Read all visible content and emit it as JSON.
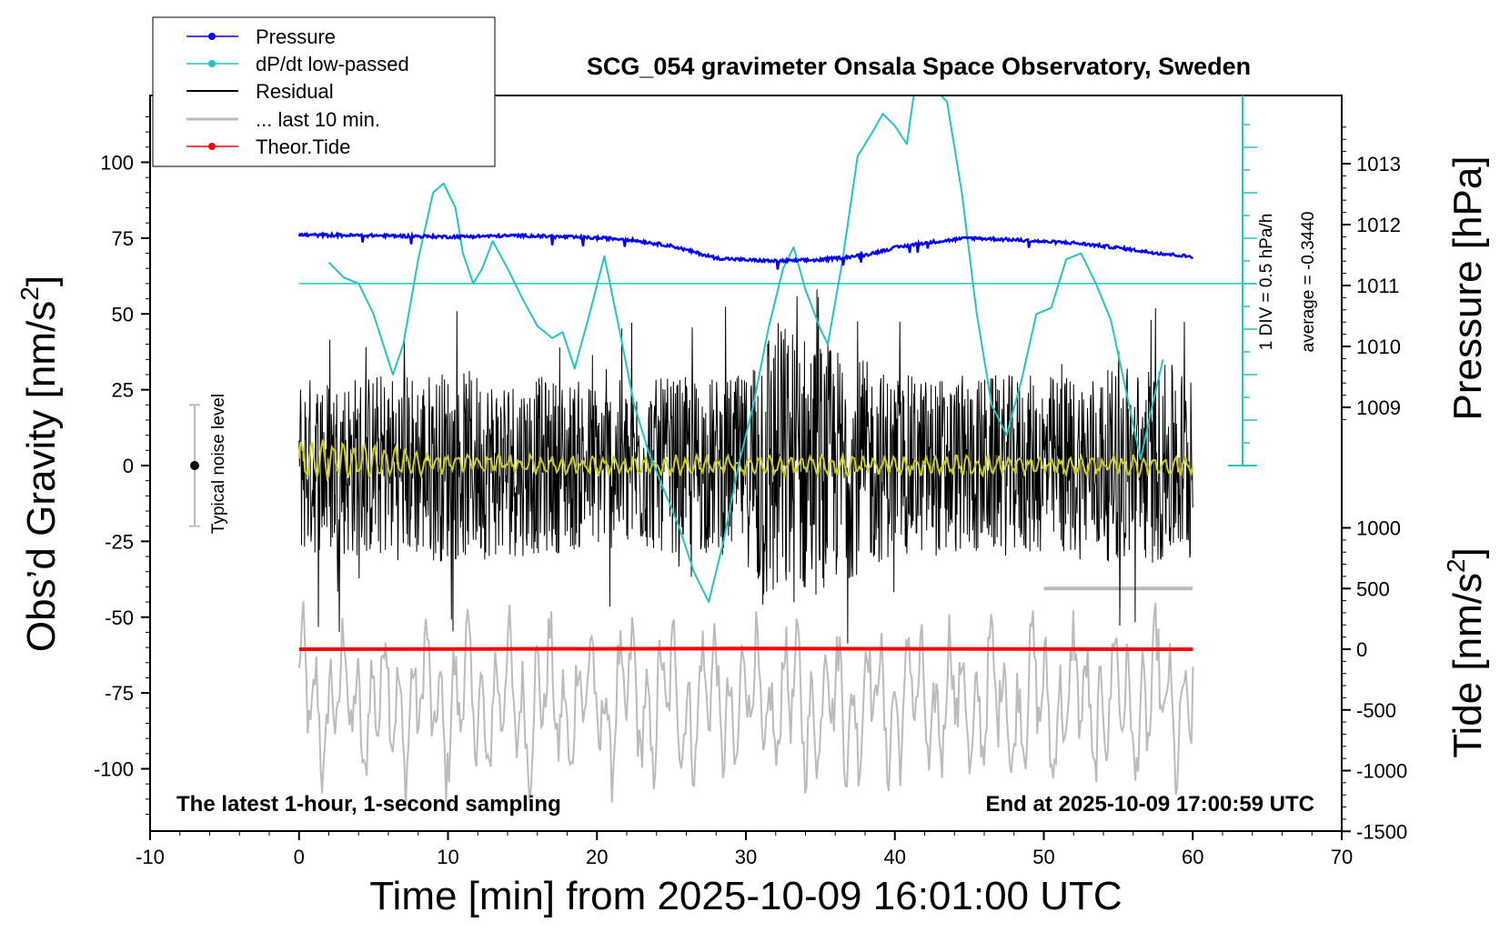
{
  "chart_data": {
    "type": "line",
    "title": "SCG_054 gravimeter Onsala Space Observatory, Sweden",
    "xlabel": "Time [min] from 2025-10-09 16:01:00 UTC",
    "xlim": [
      -10,
      70
    ],
    "x_ticks": [
      "-10",
      "0",
      "10",
      "20",
      "30",
      "40",
      "50",
      "60",
      "70"
    ],
    "left_axis": {
      "label": "Obs’d Gravity [nm/s",
      "label_sup": "2",
      "label_end": "]",
      "ylim": [
        -120,
        120
      ],
      "ticks": [
        "100",
        "75",
        "50",
        "25",
        "0",
        "-25",
        "-50",
        "-75",
        "-100"
      ]
    },
    "pressure_axis": {
      "label": "Pressure [hPa]",
      "ticks": [
        "1013",
        "1012",
        "1011",
        "1010",
        "1009"
      ]
    },
    "tide_axis": {
      "label": "Tide [nm/s",
      "label_sup": "2",
      "label_end": "]",
      "ticks": [
        "1000",
        "500",
        "0",
        "-500",
        "-1000",
        "-1500"
      ]
    },
    "dpdt_scale": {
      "div_note": "1 DIV = 0.5 hPa/h",
      "average_note": "average = -0.3440"
    },
    "noise_indicator": {
      "label": "Typical noise level",
      "range": [
        -20,
        20
      ]
    },
    "footer_left": "The latest 1-hour, 1-second sampling",
    "footer_right": "End at 2025-10-09 17:00:59 UTC",
    "legend": {
      "placement": "top-left",
      "items": [
        {
          "name": "Pressure",
          "color": "#0000ff",
          "marker": true
        },
        {
          "name": "dP/dt low-passed",
          "color": "#22c4c4",
          "marker": true
        },
        {
          "name": "Residual",
          "color": "#000000",
          "marker": false
        },
        {
          "name": "... last 10 min.",
          "color": "#bbbbbb",
          "marker": false
        },
        {
          "name": "Theor.Tide",
          "color": "#ff0000",
          "marker": true
        }
      ]
    },
    "series": [
      {
        "name": "Pressure",
        "color": "#0000ff",
        "axis": "pressure",
        "x": [
          0,
          5,
          10,
          15,
          20,
          22,
          25,
          28,
          30,
          32,
          35,
          38,
          40,
          42,
          45,
          48,
          50,
          52,
          55,
          57,
          60
        ],
        "y": [
          1011.83,
          1011.82,
          1011.8,
          1011.82,
          1011.78,
          1011.76,
          1011.65,
          1011.45,
          1011.42,
          1011.4,
          1011.42,
          1011.5,
          1011.62,
          1011.7,
          1011.78,
          1011.75,
          1011.72,
          1011.7,
          1011.62,
          1011.55,
          1011.47
        ]
      },
      {
        "name": "dP/dt low-passed",
        "color": "#22c4c4",
        "axis": "gravity",
        "x": [
          2,
          3,
          4,
          5,
          6.3,
          7,
          8,
          9,
          9.7,
          10.5,
          11,
          11.7,
          12.3,
          13,
          14,
          15,
          16,
          17,
          17.7,
          18.5,
          19.5,
          20.5,
          21.5,
          22.5,
          23.5,
          24.5,
          25.5,
          26.5,
          27.5,
          28.5,
          29.5,
          30.5,
          31.5,
          32.5,
          33.2,
          34,
          35,
          35.5,
          36.5,
          37.5,
          38.5,
          39.2,
          40,
          40.8,
          41.5,
          43.5,
          44.5,
          45.5,
          46.5,
          47.5,
          48.5,
          49.5,
          50.5,
          51.5,
          52.5,
          53.5,
          54.5,
          55.5,
          56.5,
          57.2,
          58
        ],
        "y": [
          67,
          62,
          60,
          50,
          30,
          40,
          68,
          90,
          93,
          85,
          70,
          60,
          65,
          74,
          65,
          55,
          46,
          42,
          44,
          32,
          50,
          69,
          45,
          20,
          4,
          -8,
          -20,
          -35,
          -45,
          -25,
          0,
          20,
          45,
          65,
          72,
          58,
          45,
          40,
          68,
          102,
          110,
          116,
          112,
          106,
          130,
          120,
          90,
          50,
          20,
          10,
          28,
          50,
          52,
          68,
          70,
          60,
          48,
          25,
          2,
          18,
          35
        ]
      },
      {
        "name": "Residual",
        "color": "#000000",
        "axis": "gravity",
        "x": [
          0,
          10,
          20,
          30,
          31,
          40,
          50,
          60
        ],
        "y": [
          0,
          0,
          0,
          0,
          0,
          0,
          0,
          0
        ],
        "envelope": [
          30,
          32,
          28,
          30,
          52,
          30,
          30,
          34
        ]
      },
      {
        "name": "... last 10 min.",
        "color": "#bbbbbb",
        "axis": "tide",
        "x": [
          50,
          60
        ],
        "y": [
          500,
          500
        ]
      },
      {
        "name": "Theor.Tide",
        "color": "#ff0000",
        "axis": "tide",
        "x": [
          0,
          30,
          60
        ],
        "y": [
          0,
          5,
          0
        ]
      },
      {
        "name": "smoothed residual",
        "color": "#cccc22",
        "axis": "gravity",
        "x": [
          0,
          10,
          20,
          30,
          40,
          50,
          60
        ],
        "y": [
          2,
          1,
          0,
          0,
          0,
          0,
          0
        ]
      }
    ]
  }
}
